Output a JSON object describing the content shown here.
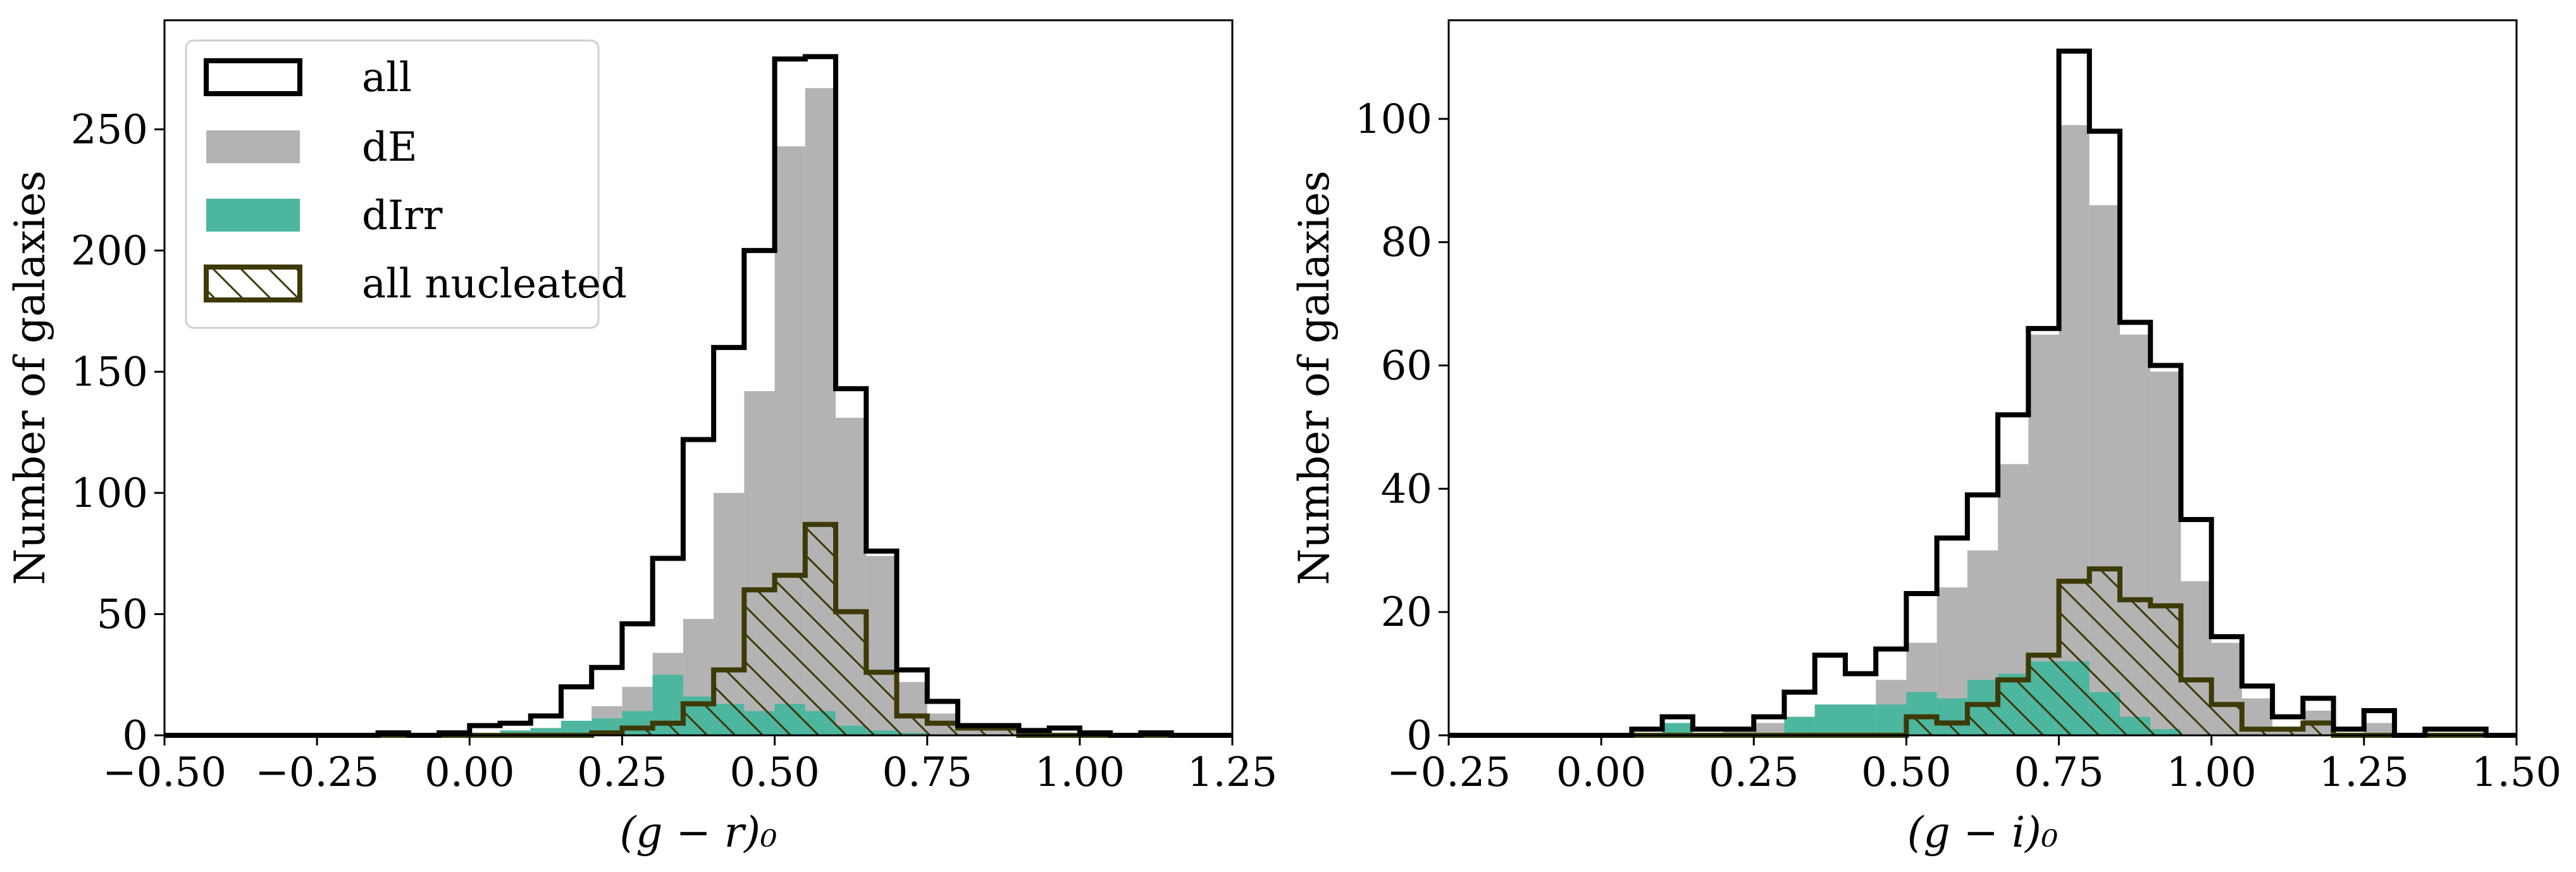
{
  "chart_data": [
    {
      "type": "histogram",
      "xlabel": "(g − r)₀",
      "ylabel": "Number of galaxies",
      "xlim": [
        -0.5,
        1.25
      ],
      "ylim": [
        0,
        295
      ],
      "xticks": [
        -0.5,
        -0.25,
        0.0,
        0.25,
        0.5,
        0.75,
        1.0,
        1.25
      ],
      "xtick_labels": [
        "−0.50",
        "−0.25",
        "0.00",
        "0.25",
        "0.50",
        "0.75",
        "1.00",
        "1.25"
      ],
      "yticks": [
        0,
        50,
        100,
        150,
        200,
        250
      ],
      "ytick_labels": [
        "0",
        "50",
        "100",
        "150",
        "200",
        "250"
      ],
      "bin_start": -0.5,
      "bin_width": 0.05,
      "legend_position": "top-left",
      "legend": [
        "all",
        "dE",
        "dIrr",
        "all nucleated"
      ],
      "series": [
        {
          "name": "all",
          "style": "step",
          "color": "#000000",
          "values": [
            0,
            0,
            0,
            0,
            0,
            0,
            0,
            1,
            0,
            1,
            4,
            5,
            8,
            20,
            28,
            46,
            73,
            122,
            160,
            200,
            279,
            280,
            143,
            76,
            27,
            14,
            4,
            4,
            2,
            3,
            1,
            0,
            1,
            0,
            0
          ]
        },
        {
          "name": "dE",
          "style": "filled",
          "color": "#b3b3b3",
          "values": [
            0,
            0,
            0,
            0,
            0,
            0,
            0,
            0,
            0,
            0,
            1,
            2,
            3,
            6,
            12,
            20,
            34,
            48,
            100,
            142,
            243,
            267,
            131,
            74,
            22,
            9,
            2,
            3,
            1,
            1,
            0,
            0,
            0,
            0,
            0
          ]
        },
        {
          "name": "dIrr",
          "style": "filled",
          "color": "#4db69f",
          "values": [
            0,
            0,
            0,
            0,
            0,
            0,
            0,
            0,
            0,
            0,
            0,
            2,
            3,
            6,
            7,
            10,
            25,
            16,
            13,
            10,
            13,
            10,
            4,
            2,
            1,
            0,
            0,
            0,
            0,
            0,
            0,
            0,
            0,
            0,
            0
          ]
        },
        {
          "name": "all nucleated",
          "style": "hatched-step",
          "color": "#3d3a08",
          "values": [
            0,
            0,
            0,
            0,
            0,
            0,
            0,
            0,
            0,
            0,
            0,
            0,
            0,
            0,
            1,
            3,
            5,
            13,
            27,
            60,
            66,
            87,
            51,
            26,
            8,
            5,
            3,
            3,
            0,
            0,
            0,
            0,
            0,
            0,
            0
          ]
        }
      ]
    },
    {
      "type": "histogram",
      "xlabel": "(g − i)₀",
      "ylabel": "Number of galaxies",
      "xlim": [
        -0.25,
        1.5
      ],
      "ylim": [
        0,
        116
      ],
      "xticks": [
        -0.25,
        0.0,
        0.25,
        0.5,
        0.75,
        1.0,
        1.25,
        1.5
      ],
      "xtick_labels": [
        "−0.25",
        "0.00",
        "0.25",
        "0.50",
        "0.75",
        "1.00",
        "1.25",
        "1.50"
      ],
      "yticks": [
        0,
        20,
        40,
        60,
        80,
        100
      ],
      "ytick_labels": [
        "0",
        "20",
        "40",
        "60",
        "80",
        "100"
      ],
      "bin_start": -0.25,
      "bin_width": 0.05,
      "series": [
        {
          "name": "all",
          "style": "step",
          "color": "#000000",
          "values": [
            0,
            0,
            0,
            0,
            0,
            0,
            1,
            3,
            1,
            1,
            3,
            7,
            13,
            10,
            14,
            23,
            32,
            39,
            52,
            66,
            111,
            98,
            67,
            60,
            35,
            16,
            8,
            3,
            6,
            1,
            4,
            0,
            1,
            1,
            0
          ]
        },
        {
          "name": "dE",
          "style": "filled",
          "color": "#b3b3b3",
          "values": [
            0,
            0,
            0,
            0,
            0,
            0,
            0,
            1,
            0,
            1,
            2,
            3,
            4,
            3,
            9,
            15,
            24,
            30,
            44,
            65,
            99,
            86,
            65,
            59,
            25,
            15,
            6,
            1,
            4,
            0,
            2,
            0,
            0,
            0,
            0
          ]
        },
        {
          "name": "dIrr",
          "style": "filled",
          "color": "#4db69f",
          "values": [
            0,
            0,
            0,
            0,
            0,
            0,
            0,
            2,
            0,
            0,
            0,
            3,
            5,
            5,
            5,
            7,
            6,
            9,
            10,
            12,
            12,
            7,
            3,
            1,
            0,
            0,
            0,
            0,
            0,
            0,
            0,
            0,
            0,
            0,
            0
          ]
        },
        {
          "name": "all nucleated",
          "style": "hatched-step",
          "color": "#3d3a08",
          "values": [
            0,
            0,
            0,
            0,
            0,
            0,
            0,
            0,
            0,
            0,
            0,
            0,
            0,
            0,
            0,
            3,
            2,
            5,
            9,
            13,
            25,
            27,
            22,
            21,
            9,
            5,
            1,
            1,
            2,
            0,
            0,
            0,
            0,
            0,
            0
          ]
        }
      ]
    }
  ]
}
